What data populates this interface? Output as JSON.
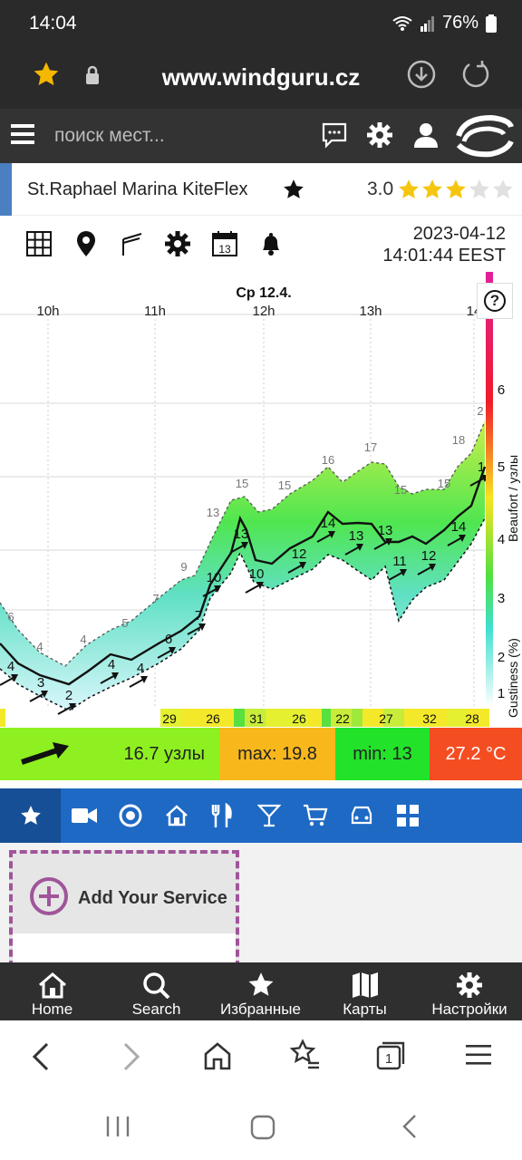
{
  "status": {
    "time": "14:04",
    "battery": "76%"
  },
  "browser": {
    "url": "www.windguru.cz"
  },
  "header": {
    "search_placeholder": "поиск мест..."
  },
  "spot": {
    "name": "St.Raphael Marina KiteFlex",
    "rating_value": "3.0",
    "stars": 3,
    "max_stars": 5
  },
  "datetime": {
    "date": "2023-04-12",
    "time": "14:01:44 EEST"
  },
  "chart_data": {
    "type": "area",
    "title": "Ср 12.4.",
    "time_labels": [
      "10h",
      "11h",
      "12h",
      "13h",
      "14"
    ],
    "right_axis_label": "Beaufort / узлы",
    "right_axis_label2": "Gustiness (%)",
    "beaufort_ticks": [
      "6",
      "5",
      "4",
      "3",
      "2",
      "1"
    ],
    "gust_labels": [
      "6",
      "4",
      "4",
      "5",
      "7",
      "9",
      "13",
      "15",
      "15",
      "16",
      "17",
      "15",
      "15",
      "18",
      "2"
    ],
    "avg_labels": [
      "4",
      "3",
      "2",
      "4",
      "4",
      "6",
      "7",
      "10",
      "13",
      "10",
      "12",
      "14",
      "13",
      "13",
      "11",
      "12",
      "14",
      "1"
    ],
    "gustiness_values": [
      "29",
      "26",
      "31",
      "26",
      "22",
      "27",
      "32",
      "28"
    ],
    "help_label": "?"
  },
  "summary": {
    "wind": "16.7 узлы",
    "max": "max: 19.8",
    "min": "min: 13",
    "temp": "27.2 °C"
  },
  "service": {
    "add_label": "Add Your Service"
  },
  "nav": {
    "home": "Home",
    "search": "Search",
    "favorites": "Избранные",
    "maps": "Карты",
    "settings": "Настройки"
  }
}
